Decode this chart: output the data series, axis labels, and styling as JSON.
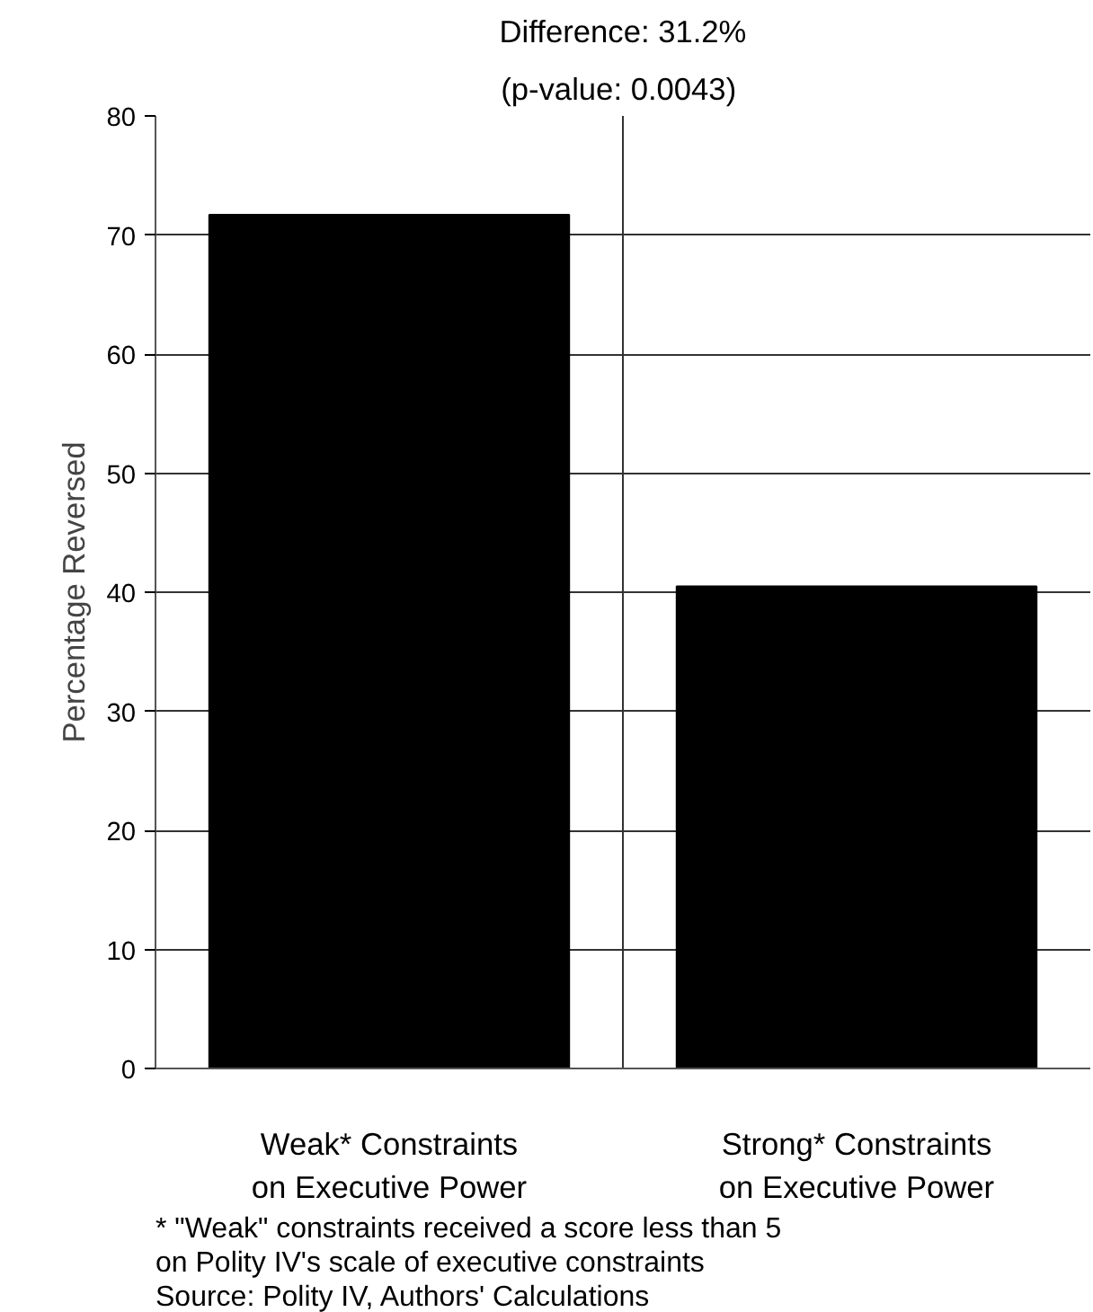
{
  "chart_data": {
    "type": "bar",
    "title": "Difference: 31.2%",
    "subtitle": "(p-value:  0.0043)",
    "ylabel": "Percentage Reversed",
    "categories": [
      "Weak* Constraints\non Executive Power",
      "Strong* Constraints\non Executive Power"
    ],
    "values": [
      71.7,
      40.5
    ],
    "color": "#000000",
    "ylim": [
      0,
      80
    ],
    "yticks": [
      0,
      10,
      20,
      30,
      40,
      50,
      60,
      70,
      80
    ],
    "grid": true,
    "annotations": [
      "* \"Weak\" constraints received a score less than 5",
      "on Polity IV's scale of executive constraints",
      "Source: Polity IV,  Authors' Calculations"
    ]
  }
}
